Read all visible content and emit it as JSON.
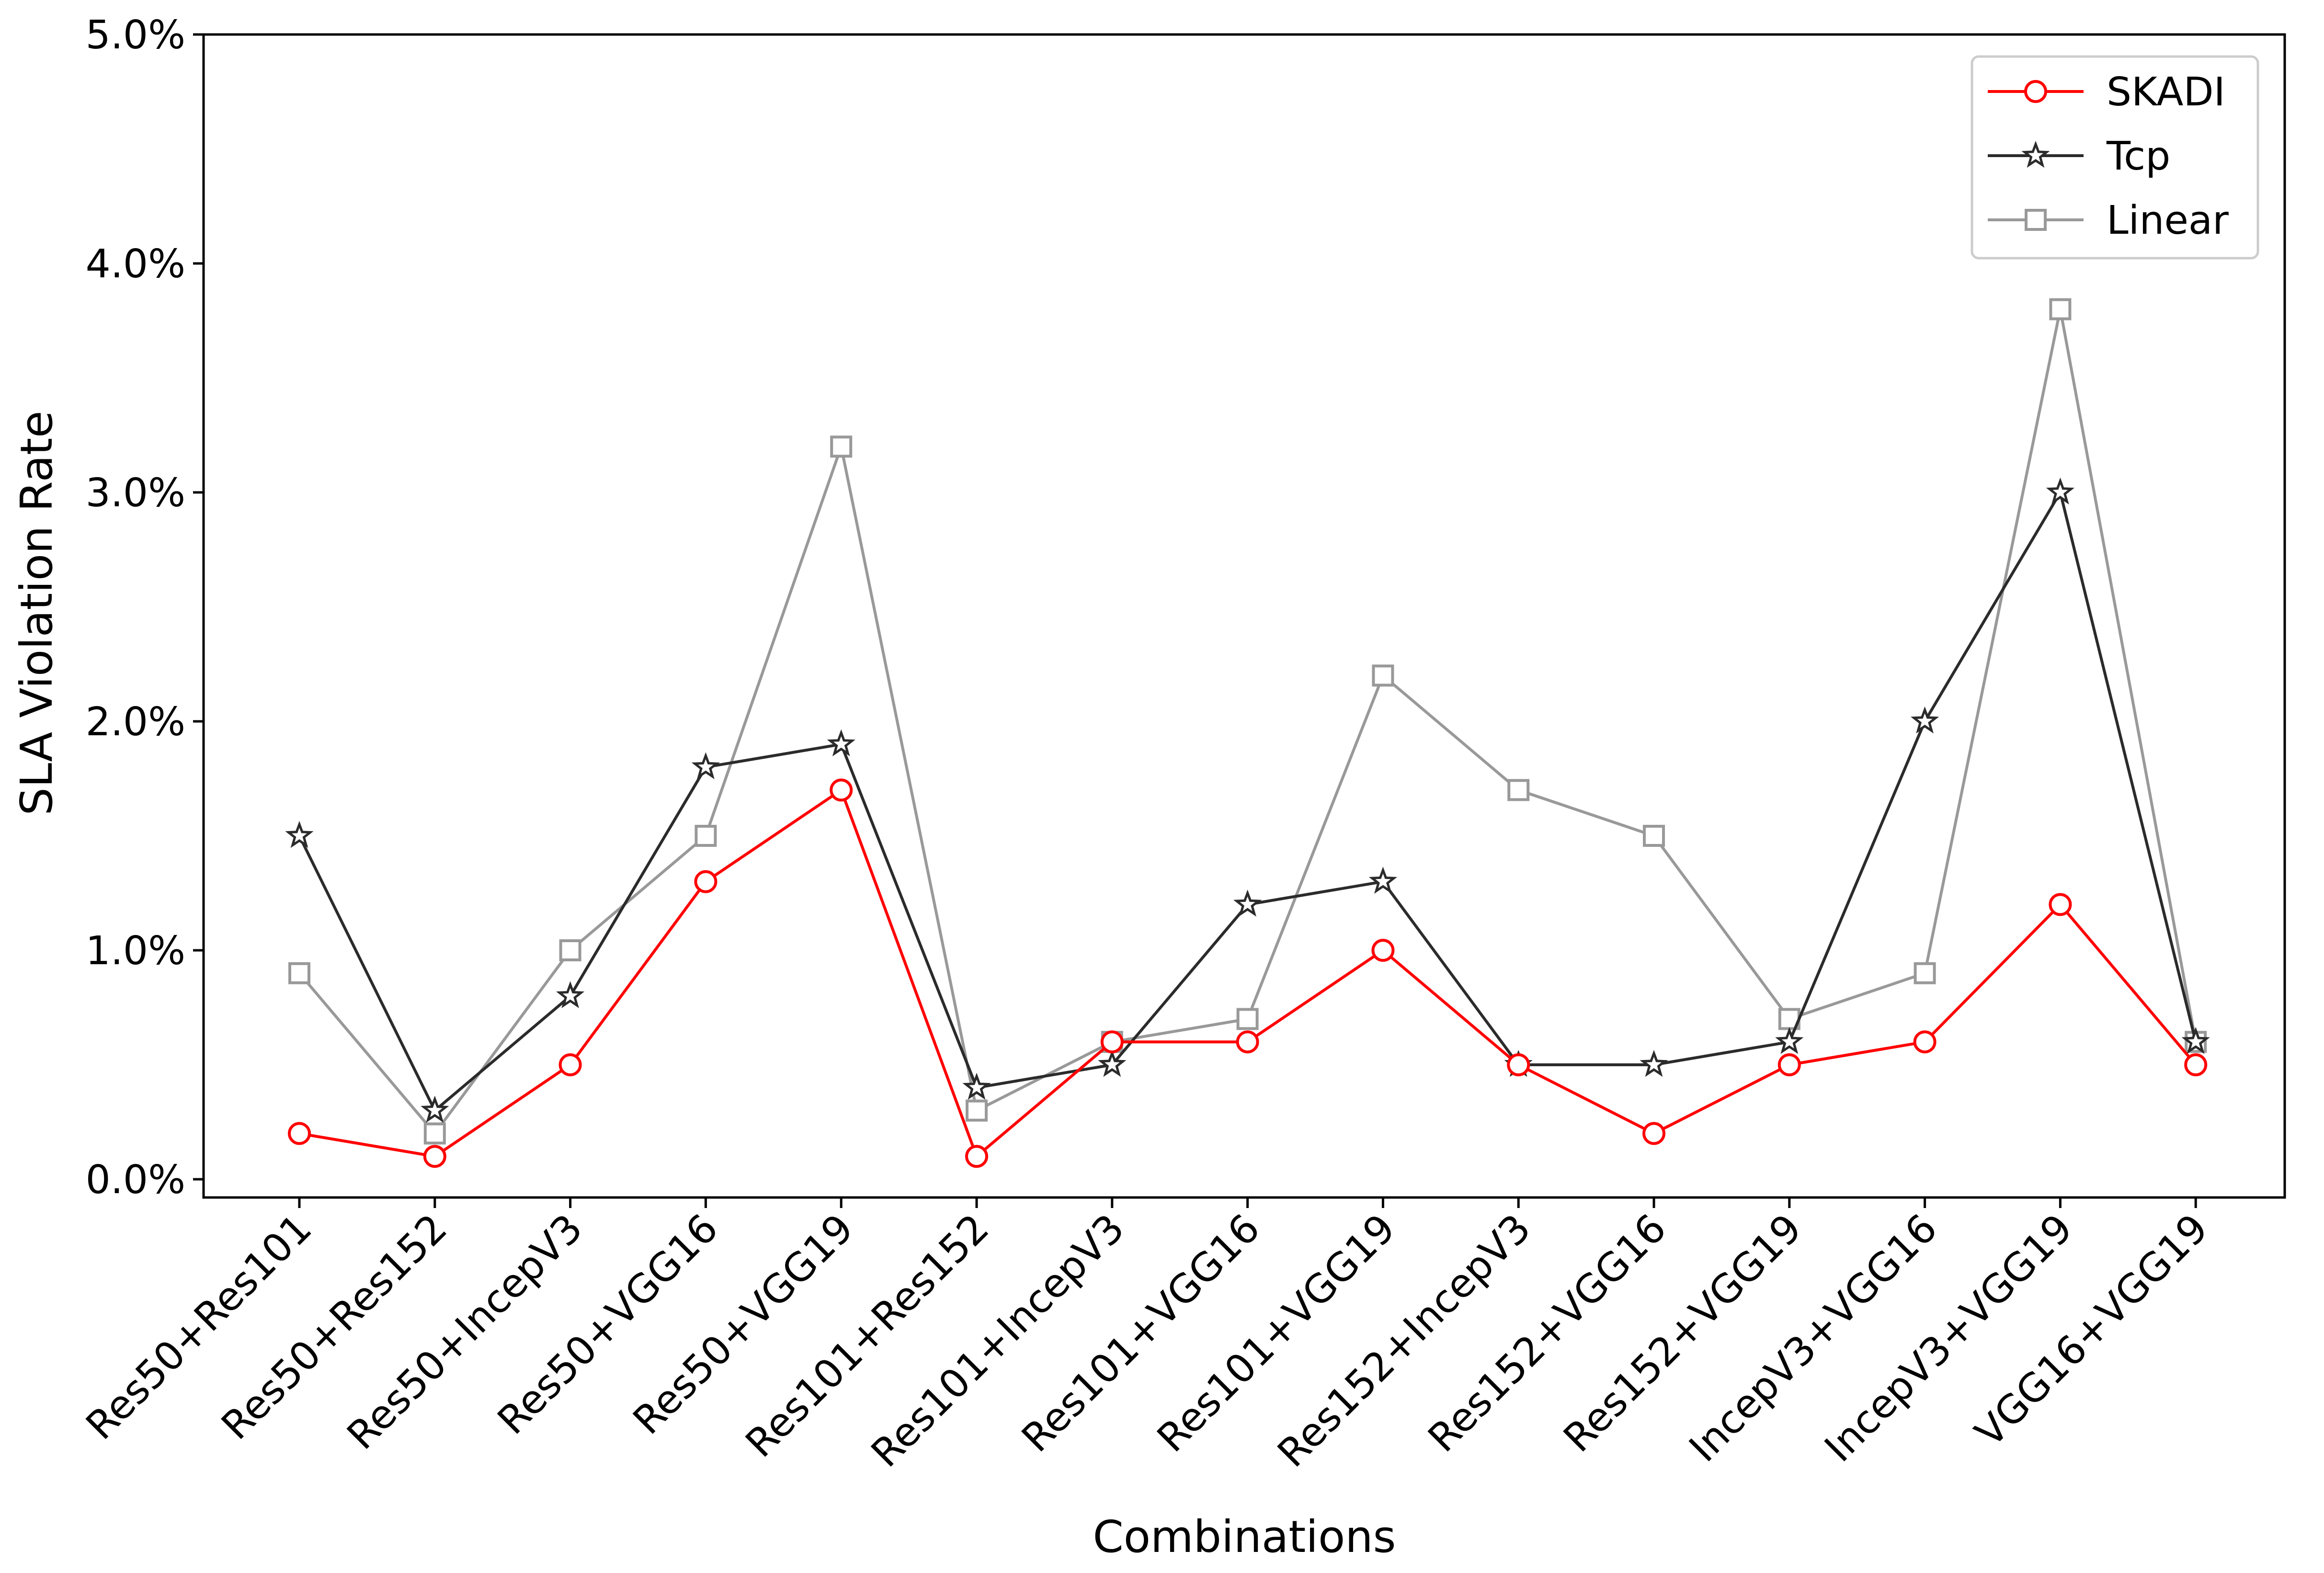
{
  "chart_data": {
    "type": "line",
    "title": "",
    "xlabel": "Combinations",
    "ylabel": "SLA Violation Rate",
    "ylim": [
      -0.07,
      5.0
    ],
    "y_ticks": [
      0.0,
      1.0,
      2.0,
      3.0,
      4.0,
      5.0
    ],
    "y_tick_labels": [
      "0.0%",
      "1.0%",
      "2.0%",
      "3.0%",
      "4.0%",
      "5.0%"
    ],
    "grid": false,
    "legend_position": "top-right",
    "categories": [
      "Res50+Res101",
      "Res50+Res152",
      "Res50+IncepV3",
      "Res50+VGG16",
      "Res50+VGG19",
      "Res101+Res152",
      "Res101+IncepV3",
      "Res101+VGG16",
      "Res101+VGG19",
      "Res152+IncepV3",
      "Res152+VGG16",
      "Res152+VGG19",
      "IncepV3+VGG16",
      "IncepV3+VGG19",
      "VGG16+VGG19"
    ],
    "series": [
      {
        "name": "SKADI",
        "color": "#ff0000",
        "marker": "circle",
        "values": [
          0.2,
          0.1,
          0.5,
          1.3,
          1.7,
          0.1,
          0.6,
          0.6,
          1.0,
          0.5,
          0.2,
          0.5,
          0.6,
          1.2,
          0.5
        ]
      },
      {
        "name": "Tcp",
        "color": "#2b2b2b",
        "marker": "star",
        "values": [
          1.5,
          0.3,
          0.8,
          1.8,
          1.9,
          0.4,
          0.5,
          1.2,
          1.3,
          0.5,
          0.5,
          0.6,
          2.0,
          3.0,
          0.6
        ]
      },
      {
        "name": "Linear",
        "color": "#999999",
        "marker": "square",
        "values": [
          0.9,
          0.2,
          1.0,
          1.5,
          3.2,
          0.3,
          0.6,
          0.7,
          2.2,
          1.7,
          1.5,
          0.7,
          0.9,
          3.8,
          0.6
        ]
      }
    ]
  }
}
